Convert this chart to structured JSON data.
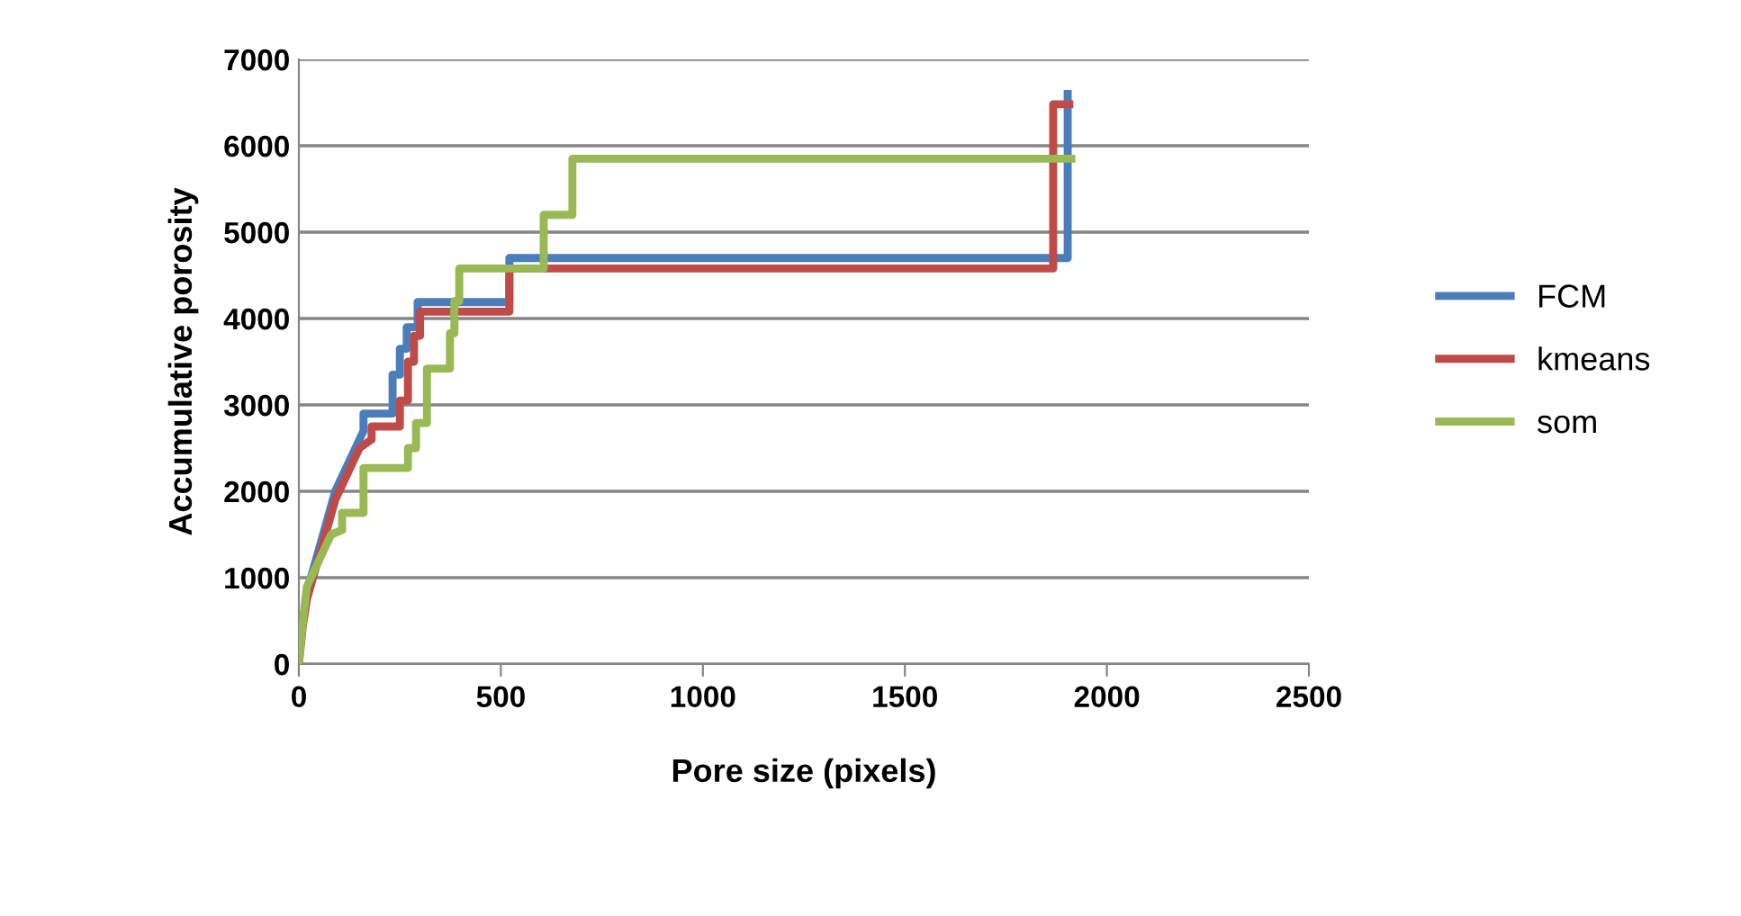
{
  "chart_data": {
    "type": "line",
    "xlabel": "Pore size (pixels)",
    "ylabel": "Accumulative porosity",
    "xlim": [
      0,
      2500
    ],
    "xticks": [
      0,
      500,
      1000,
      1500,
      2000,
      2500
    ],
    "ylim": [
      0,
      7000
    ],
    "yticks": [
      0,
      1000,
      2000,
      3000,
      4000,
      5000,
      6000,
      7000
    ],
    "grid": "y",
    "legend": "right",
    "line_style": "solid",
    "marker": "none",
    "series": [
      {
        "name": "FCM",
        "color": "#4a7ebb",
        "x": [
          20,
          31,
          60,
          90,
          120,
          160,
          160,
          232,
          232,
          250,
          250,
          267,
          267,
          294,
          294,
          521,
          521,
          1903,
          1903
        ],
        "values": [
          800,
          1020,
          1500,
          2000,
          2300,
          2700,
          2900,
          2900,
          3350,
          3350,
          3650,
          3650,
          3900,
          3900,
          4190,
          4190,
          4700,
          4700,
          6600
        ]
      },
      {
        "name": "kmeans",
        "color": "#be4b48",
        "x": [
          0,
          10,
          20,
          35,
          60,
          90,
          120,
          150,
          180,
          180,
          250,
          250,
          270,
          270,
          285,
          285,
          300,
          300,
          521,
          521,
          1867,
          1867,
          1907
        ],
        "values": [
          0,
          450,
          750,
          1000,
          1400,
          1900,
          2200,
          2500,
          2600,
          2750,
          2750,
          3050,
          3050,
          3500,
          3500,
          3800,
          3800,
          4080,
          4080,
          4580,
          4580,
          6480,
          6480
        ]
      },
      {
        "name": "som",
        "color": "#98b954",
        "x": [
          0,
          10,
          20,
          40,
          60,
          80,
          107,
          107,
          160,
          160,
          270,
          270,
          290,
          290,
          317,
          317,
          374,
          374,
          385,
          385,
          397,
          397,
          606,
          606,
          677,
          677,
          1912
        ],
        "values": [
          0,
          500,
          900,
          1100,
          1300,
          1500,
          1550,
          1750,
          1750,
          2270,
          2270,
          2500,
          2500,
          2790,
          2790,
          3420,
          3420,
          3830,
          3830,
          4200,
          4200,
          4580,
          4580,
          5200,
          5200,
          5850,
          5850
        ]
      }
    ]
  }
}
